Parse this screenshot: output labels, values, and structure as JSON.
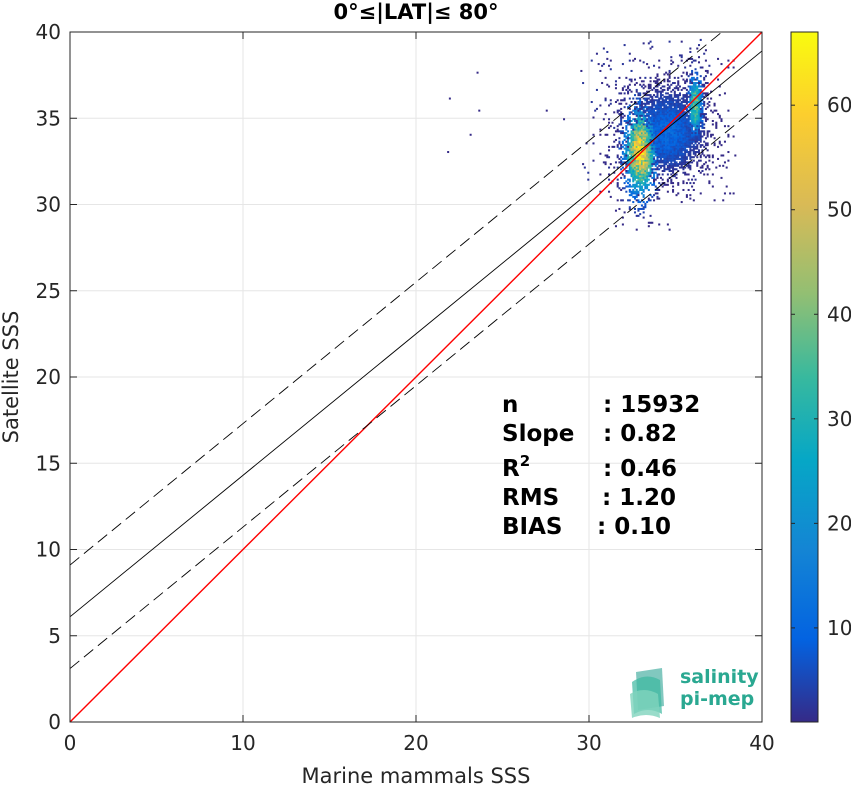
{
  "chart_data": {
    "type": "scatter",
    "title": "0°≤|LAT|≤ 80°",
    "xlabel": "Marine mammals SSS",
    "ylabel": "Satellite SSS",
    "xlim": [
      0,
      40
    ],
    "ylim": [
      0,
      40
    ],
    "xticks": [
      0,
      10,
      20,
      30,
      40
    ],
    "yticks": [
      0,
      5,
      10,
      15,
      20,
      25,
      30,
      35,
      40
    ],
    "grid": true,
    "colorbar": {
      "min": 1,
      "max": 67,
      "ticks": [
        10,
        20,
        30,
        40,
        50,
        60
      ],
      "colormap": "parula"
    },
    "reference_lines": [
      {
        "name": "1:1 line",
        "slope": 1.0,
        "intercept": 0,
        "color": "#ff0000",
        "style": "solid"
      },
      {
        "name": "regression",
        "slope": 0.82,
        "intercept": 6.1,
        "color": "#000000",
        "style": "solid"
      },
      {
        "name": "regression +1.5 sigma",
        "slope": 0.82,
        "intercept": 9.1,
        "color": "#000000",
        "style": "dashed"
      },
      {
        "name": "regression -1.5 sigma",
        "slope": 0.82,
        "intercept": 3.1,
        "color": "#000000",
        "style": "dashed"
      }
    ],
    "density_clusters": [
      {
        "x": 32.9,
        "y": 33.0,
        "sx": 0.55,
        "sy": 1.5,
        "peak": 67,
        "weight": 7000
      },
      {
        "x": 36.1,
        "y": 35.7,
        "sx": 0.25,
        "sy": 1.1,
        "peak": 45,
        "weight": 2200
      },
      {
        "x": 34.5,
        "y": 34.2,
        "sx": 1.2,
        "sy": 1.4,
        "peak": 12,
        "weight": 2600
      }
    ],
    "outliers": [
      [
        21.9,
        36.2
      ],
      [
        23.6,
        35.5
      ],
      [
        23.1,
        34.1
      ],
      [
        23.5,
        37.7
      ],
      [
        21.8,
        33.1
      ],
      [
        28.5,
        35.0
      ],
      [
        27.5,
        35.5
      ]
    ],
    "stats": [
      {
        "label": "n",
        "value": ": 15932"
      },
      {
        "label": "Slope",
        "value": ": 0.82"
      },
      {
        "label": "R",
        "superscript": "2",
        "value": ": 0.46"
      },
      {
        "label": "RMS",
        "value": ": 1.20"
      },
      {
        "label": "BIAS",
        "value": ": 0.10"
      }
    ]
  },
  "logo": {
    "line1": "salinity",
    "line2": "pi-mep"
  }
}
